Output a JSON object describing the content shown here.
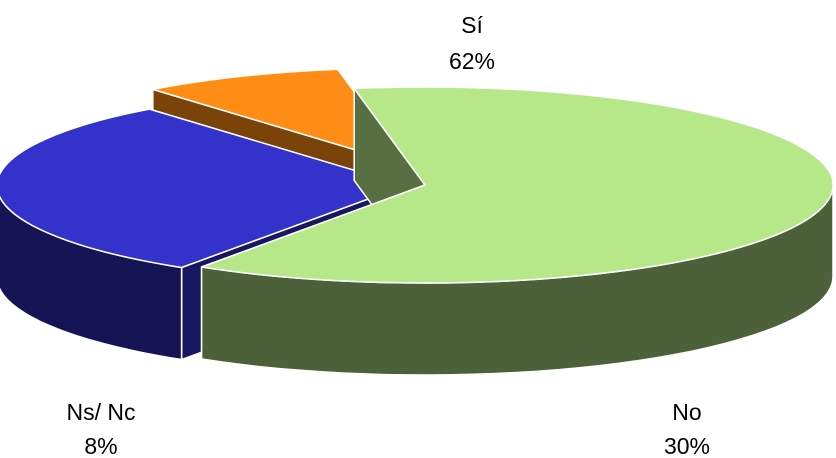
{
  "chart_data": {
    "type": "pie",
    "style": "3d-exploded",
    "title": "",
    "legend": "none",
    "slices": [
      {
        "key": "si",
        "label": "Sí",
        "value": 62,
        "value_label": "62%",
        "color": "#b6e889"
      },
      {
        "key": "no",
        "label": "No",
        "value": 30,
        "value_label": "30%",
        "color": "#3333cc"
      },
      {
        "key": "ns-nc",
        "label": "Ns/ Nc",
        "value": 8,
        "value_label": "8%",
        "color": "#ff8c14"
      }
    ]
  }
}
